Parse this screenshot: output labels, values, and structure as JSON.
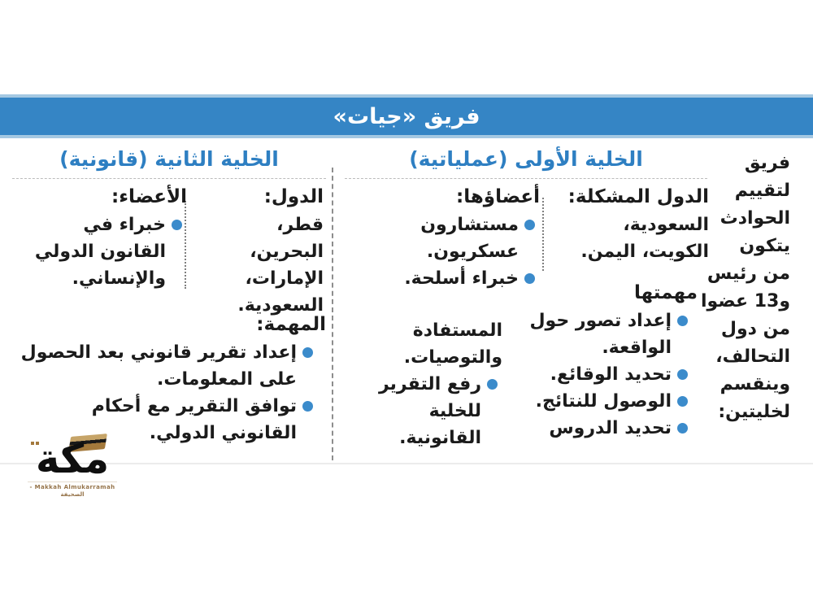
{
  "meta": {
    "accent_blue": "#3585c5",
    "heading_blue": "#2e7fc2",
    "bullet_blue": "#3b8bcb",
    "logo_gold": "#a3793c"
  },
  "header": {
    "title": "فريق «جيات»"
  },
  "intro": {
    "text": "فريق\nلتقييم\nالحوادث\nيتكون\nمن رئيس\nو13 عضوا\nمن دول\nالتحالف،\nوينقسم\nلخليتين:"
  },
  "cell_operational": {
    "heading": "الخلية الأولى (عملياتية)",
    "countries": {
      "label": "الدول المشكلة:",
      "text": "السعودية،\nالكويت، اليمن."
    },
    "members": {
      "label": "أعضاؤها:",
      "items": [
        "مستشارون عسكريون.",
        "خبراء أسلحة."
      ]
    },
    "missions": {
      "label": "مهمتها",
      "items": [
        "إعداد تصور حول الواقعة.",
        "تحديد الوقائع.",
        "الوصول للنتائج.",
        "تحديد الدروس"
      ]
    },
    "missions_cont": {
      "text": "المستفادة والتوصيات.",
      "items": [
        "رفع التقرير للخلية القانونية."
      ]
    }
  },
  "cell_legal": {
    "heading": "الخلية الثانية (قانونية)",
    "countries": {
      "label": "الدول:",
      "text": "قطر، البحرين،\nالإمارات،\nالسعودية."
    },
    "members": {
      "label": "الأعضاء:",
      "items": [
        "خبراء في القانون الدولي والإنساني."
      ]
    },
    "mission": {
      "label": "المهمة:",
      "items": [
        "إعداد تقرير قانوني بعد الحصول على المعلومات.",
        "توافق التقرير مع أحكام القانوني الدولي."
      ]
    }
  },
  "logo": {
    "wordmark": "مكة",
    "tagline": "Makkah Almukarramah - الصحيفة"
  }
}
